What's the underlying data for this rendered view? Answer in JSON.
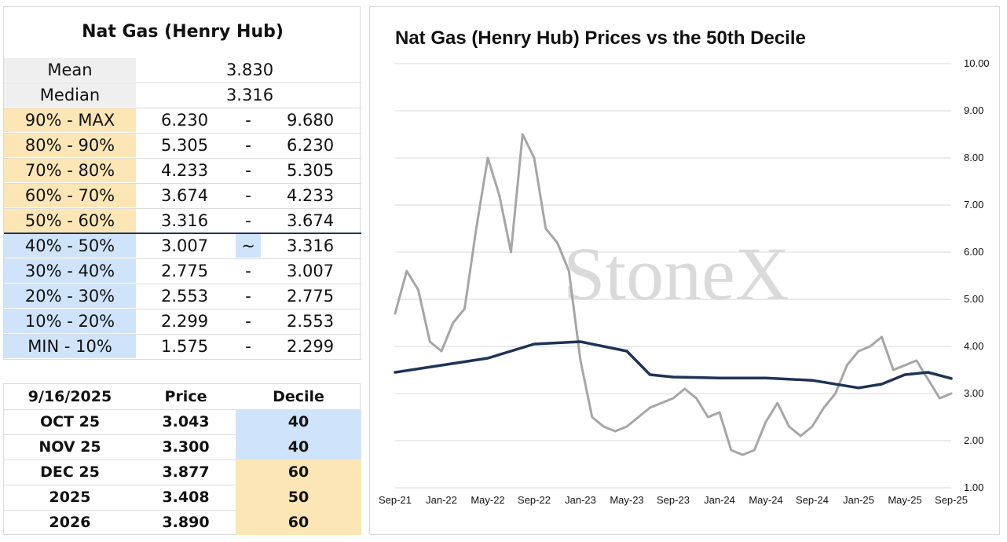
{
  "summary_table": {
    "title": "Nat Gas (Henry Hub)",
    "mean_label": "Mean",
    "mean_value": "3.830",
    "median_label": "Median",
    "median_value": "3.316",
    "deciles": [
      {
        "label": "90% - MAX",
        "low": "6.230",
        "sep": "-",
        "high": "9.680",
        "color": "#fde6b6"
      },
      {
        "label": "80% - 90%",
        "low": "5.305",
        "sep": "-",
        "high": "6.230",
        "color": "#fde6b6"
      },
      {
        "label": "70% - 80%",
        "low": "4.233",
        "sep": "-",
        "high": "5.305",
        "color": "#fde6b6"
      },
      {
        "label": "60% - 70%",
        "low": "3.674",
        "sep": "-",
        "high": "4.233",
        "color": "#fde6b6"
      },
      {
        "label": "50% - 60%",
        "low": "3.316",
        "sep": "-",
        "high": "3.674",
        "color": "#fde6b6"
      },
      {
        "label": "40% - 50%",
        "low": "3.007",
        "sep": "~",
        "high": "3.316",
        "color": "#cfe4fa"
      },
      {
        "label": "30% - 40%",
        "low": "2.775",
        "sep": "-",
        "high": "3.007",
        "color": "#cfe4fa"
      },
      {
        "label": "20% - 30%",
        "low": "2.553",
        "sep": "-",
        "high": "2.775",
        "color": "#cfe4fa"
      },
      {
        "label": "10% - 20%",
        "low": "2.299",
        "sep": "-",
        "high": "2.553",
        "color": "#cfe4fa"
      },
      {
        "label": "MIN - 10%",
        "low": "1.575",
        "sep": "-",
        "high": "2.299",
        "color": "#cfe4fa"
      }
    ]
  },
  "futures_table": {
    "headers": [
      "9/16/2025",
      "Price",
      "Decile"
    ],
    "rows": [
      {
        "contract": "OCT 25",
        "price": "3.043",
        "decile": "40",
        "color": "#cfe4fa"
      },
      {
        "contract": "NOV 25",
        "price": "3.300",
        "decile": "40",
        "color": "#cfe4fa"
      },
      {
        "contract": "DEC 25",
        "price": "3.877",
        "decile": "60",
        "color": "#fde6b6"
      },
      {
        "contract": "2025",
        "price": "3.408",
        "decile": "50",
        "color": "#fde6b6"
      },
      {
        "contract": "2026",
        "price": "3.890",
        "decile": "60",
        "color": "#fde6b6"
      }
    ]
  },
  "watermark": "StoneX",
  "chart_data": {
    "type": "line",
    "title": "Nat Gas (Henry Hub) Prices vs the 50th Decile",
    "xlabel": "",
    "ylabel": "",
    "ylim": [
      1.0,
      10.0
    ],
    "yticks": [
      "1.00",
      "2.00",
      "3.00",
      "4.00",
      "5.00",
      "6.00",
      "7.00",
      "8.00",
      "9.00",
      "10.00"
    ],
    "xticks": [
      "Sep-21",
      "Jan-22",
      "May-22",
      "Sep-22",
      "Jan-23",
      "May-23",
      "Sep-23",
      "Jan-24",
      "May-24",
      "Sep-24",
      "Jan-25",
      "May-25",
      "Sep-25"
    ],
    "grid": true,
    "legend": "none",
    "series": [
      {
        "color": "#a6a6a6",
        "points": [
          [
            "Sep-21",
            4.7
          ],
          [
            "Oct-21",
            5.6
          ],
          [
            "Nov-21",
            5.2
          ],
          [
            "Dec-21",
            4.1
          ],
          [
            "Jan-22",
            3.9
          ],
          [
            "Feb-22",
            4.5
          ],
          [
            "Mar-22",
            4.8
          ],
          [
            "Apr-22",
            6.5
          ],
          [
            "May-22",
            8.0
          ],
          [
            "Jun-22",
            7.2
          ],
          [
            "Jul-22",
            6.0
          ],
          [
            "Aug-22",
            8.5
          ],
          [
            "Sep-22",
            8.0
          ],
          [
            "Oct-22",
            6.5
          ],
          [
            "Nov-22",
            6.2
          ],
          [
            "Dec-22",
            5.6
          ],
          [
            "Jan-23",
            3.7
          ],
          [
            "Feb-23",
            2.5
          ],
          [
            "Mar-23",
            2.3
          ],
          [
            "Apr-23",
            2.2
          ],
          [
            "May-23",
            2.3
          ],
          [
            "Jun-23",
            2.5
          ],
          [
            "Jul-23",
            2.7
          ],
          [
            "Aug-23",
            2.8
          ],
          [
            "Sep-23",
            2.9
          ],
          [
            "Oct-23",
            3.1
          ],
          [
            "Nov-23",
            2.9
          ],
          [
            "Dec-23",
            2.5
          ],
          [
            "Jan-24",
            2.6
          ],
          [
            "Feb-24",
            1.8
          ],
          [
            "Mar-24",
            1.7
          ],
          [
            "Apr-24",
            1.8
          ],
          [
            "May-24",
            2.4
          ],
          [
            "Jun-24",
            2.8
          ],
          [
            "Jul-24",
            2.3
          ],
          [
            "Aug-24",
            2.1
          ],
          [
            "Sep-24",
            2.3
          ],
          [
            "Oct-24",
            2.7
          ],
          [
            "Nov-24",
            3.0
          ],
          [
            "Dec-24",
            3.6
          ],
          [
            "Jan-25",
            3.9
          ],
          [
            "Feb-25",
            4.0
          ],
          [
            "Mar-25",
            4.2
          ],
          [
            "Apr-25",
            3.5
          ],
          [
            "May-25",
            3.6
          ],
          [
            "Jun-25",
            3.7
          ],
          [
            "Jul-25",
            3.3
          ],
          [
            "Aug-25",
            2.9
          ],
          [
            "Sep-25",
            3.0
          ]
        ]
      },
      {
        "color": "#1f3354",
        "points": [
          [
            "Sep-21",
            3.45
          ],
          [
            "Jan-22",
            3.6
          ],
          [
            "May-22",
            3.75
          ],
          [
            "Sep-22",
            4.05
          ],
          [
            "Jan-23",
            4.1
          ],
          [
            "May-23",
            3.9
          ],
          [
            "Jul-23",
            3.4
          ],
          [
            "Sep-23",
            3.35
          ],
          [
            "Jan-24",
            3.33
          ],
          [
            "May-24",
            3.33
          ],
          [
            "Sep-24",
            3.28
          ],
          [
            "Jan-25",
            3.12
          ],
          [
            "Mar-25",
            3.2
          ],
          [
            "May-25",
            3.4
          ],
          [
            "Jul-25",
            3.45
          ],
          [
            "Sep-25",
            3.32
          ]
        ]
      }
    ]
  }
}
